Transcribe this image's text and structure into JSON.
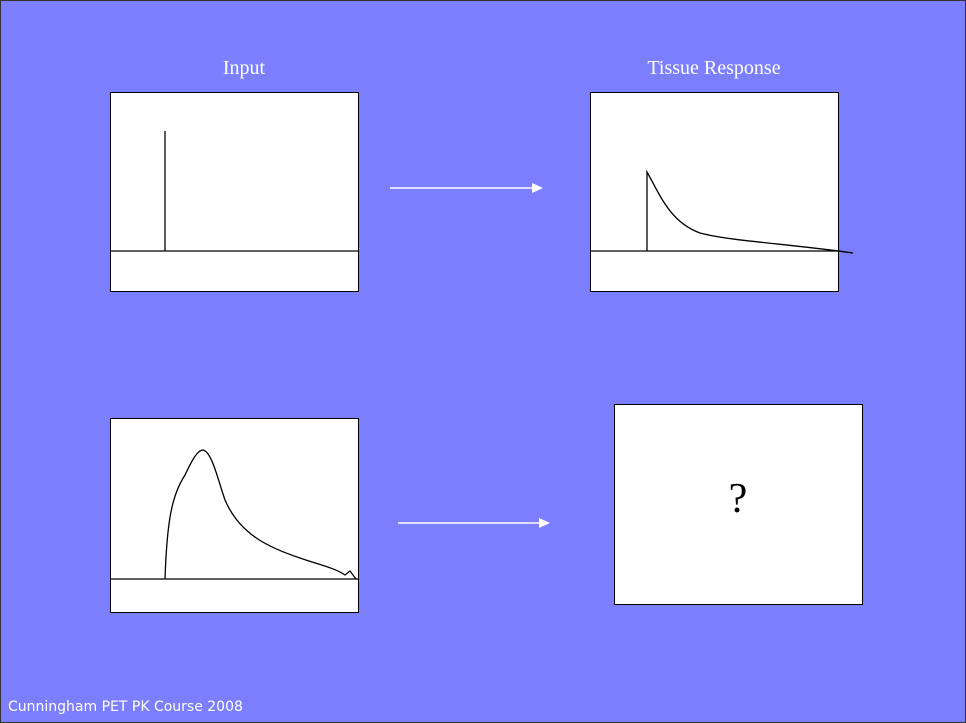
{
  "labels": {
    "input": "Input",
    "tissue_response": "Tissue Response"
  },
  "unknown": "?",
  "footer": "Cunningham PET PK Course 2008"
}
